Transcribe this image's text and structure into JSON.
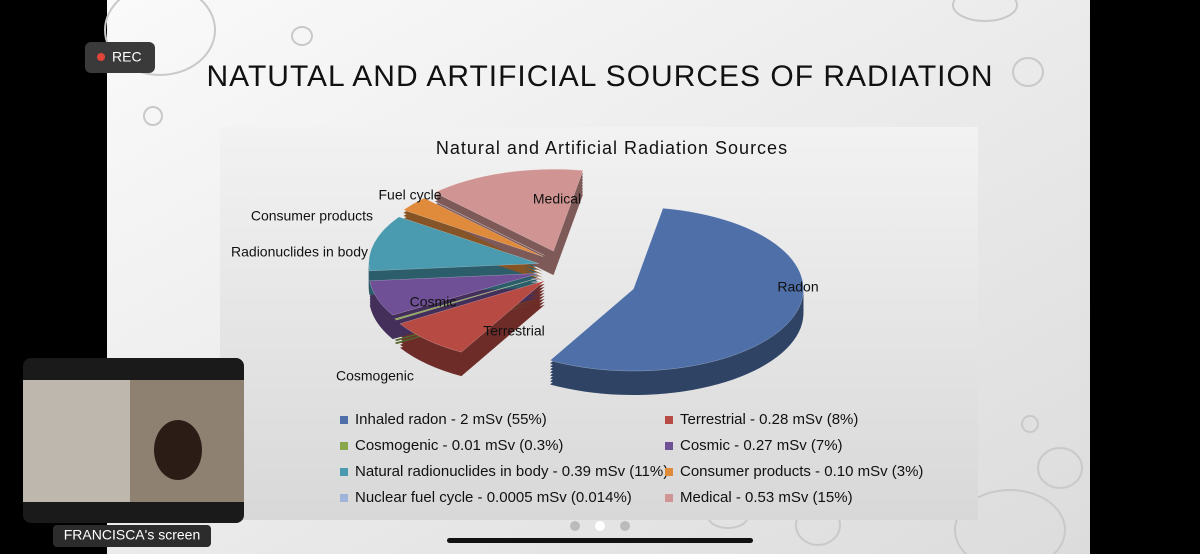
{
  "screen": {
    "rec": "REC",
    "slide_title": "NATUTAL AND ARTIFICIAL SOURCES OF RADIATION",
    "participant": "FRANCISCA's screen"
  },
  "chart_data": {
    "type": "pie",
    "title": "Natural and Artificial Radiation Sources",
    "categories": [
      "Inhaled radon - 2 mSv (55%)",
      "Terrestrial - 0.28 mSv (8%)",
      "Cosmogenic - 0.01 mSv (0.3%)",
      "Cosmic - 0.27 mSv (7%)",
      "Natural radionuclides in body - 0.39 mSv (11%)",
      "Consumer products - 0.10 mSv (3%)",
      "Nuclear fuel cycle - 0.0005 mSv (0.014%)",
      "Medical - 0.53 mSv (15%)"
    ],
    "slice_labels": [
      "Radon",
      "Terrestrial",
      "Cosmogenic",
      "Cosmic",
      "Radionuclides in body",
      "Consumer products",
      "Fuel cycle",
      "Medical"
    ],
    "values": [
      55,
      8,
      0.3,
      7,
      11,
      3,
      0.014,
      15
    ],
    "colors": [
      "#4f6fa8",
      "#b84a44",
      "#8aa84b",
      "#6f4f96",
      "#4a9bb0",
      "#e08a3c",
      "#9fb4d8",
      "#d09492"
    ]
  }
}
